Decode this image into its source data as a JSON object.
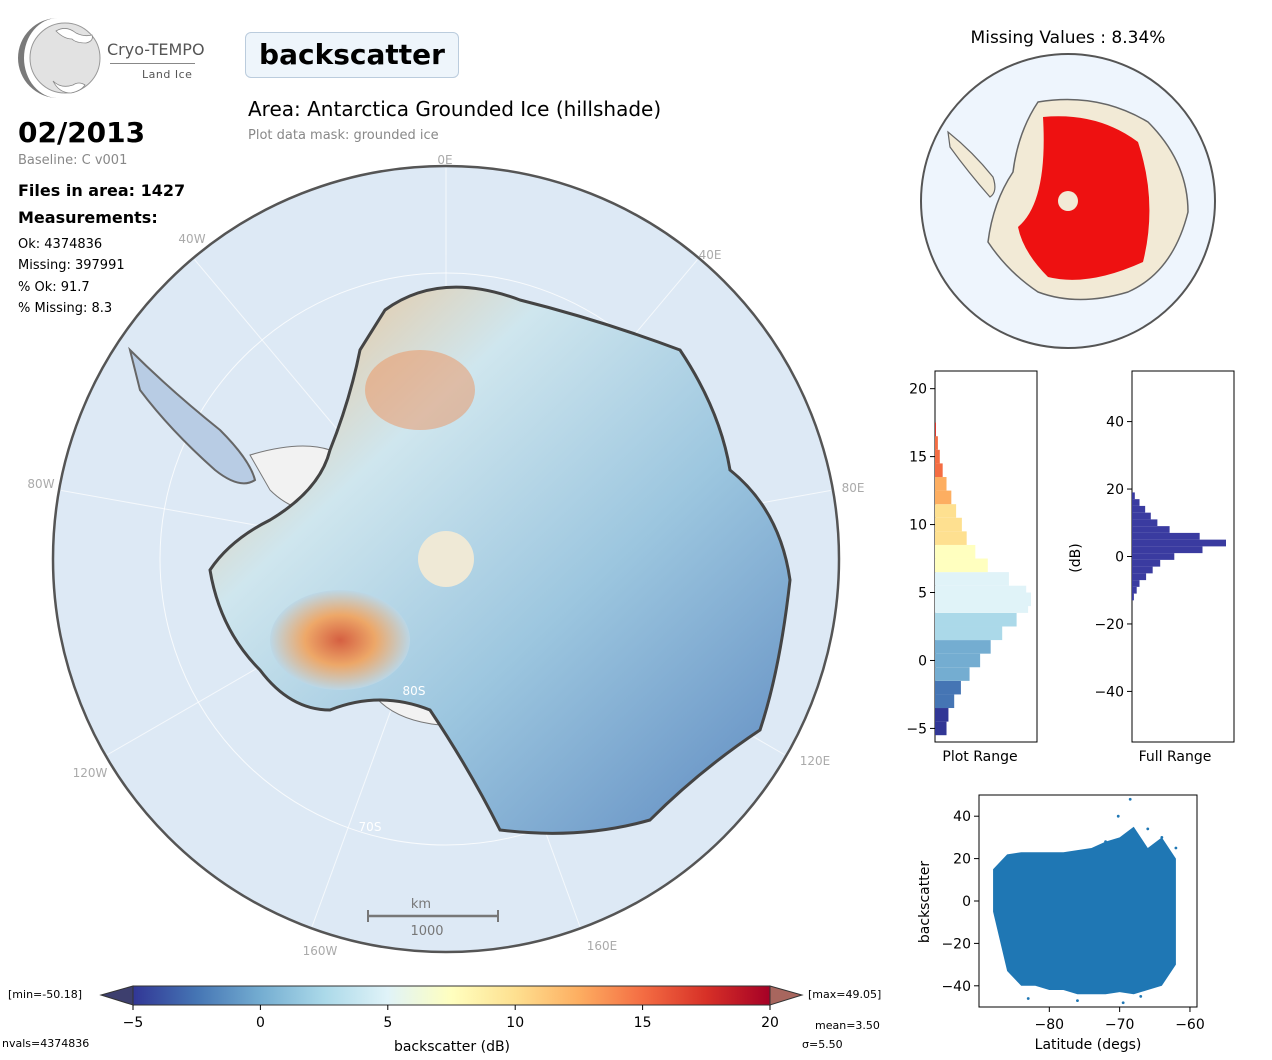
{
  "logo": {
    "main": "Cryo-TEMPO",
    "sub": "Land Ice"
  },
  "parameter": "backscatter",
  "area_title": "Area: Antarctica Grounded Ice (hillshade)",
  "mask_label": "Plot data mask: grounded ice",
  "date": "02/2013",
  "baseline": "Baseline: C v001",
  "files_in_area": "Files in area: 1427",
  "measurements_heading": "Measurements:",
  "stats": {
    "ok": "Ok: 4374836",
    "missing": "Missing: 397991",
    "pct_ok": "% Ok: 91.7",
    "pct_missing": "% Missing: 8.3"
  },
  "missing_title": "Missing Values : 8.34%",
  "map": {
    "lon_labels": [
      "0E",
      "40E",
      "80E",
      "120E",
      "160E",
      "160W",
      "120W",
      "80W",
      "40W"
    ],
    "lat_labels": [
      "80S",
      "70S"
    ],
    "scale_bar": {
      "unit": "km",
      "length": "1000"
    }
  },
  "colorbar": {
    "label": "backscatter (dB)",
    "ticks": [
      "−5",
      "0",
      "5",
      "10",
      "15",
      "20"
    ],
    "range": [
      -5,
      20
    ],
    "min_label": "[min=-50.18]",
    "max_label": "[max=49.05]",
    "colors": [
      "#313695",
      "#4575b4",
      "#74add1",
      "#abd9e9",
      "#e0f3f8",
      "#ffffbf",
      "#fee090",
      "#fdae61",
      "#f46d43",
      "#d73027",
      "#a50026"
    ]
  },
  "summary": {
    "nvals": "nvals=4374836",
    "mean": "mean=3.50",
    "sigma": "σ=5.50"
  },
  "chart_data": [
    {
      "type": "bar",
      "orientation": "horizontal",
      "xlabel": "Plot Range",
      "ylabel": "",
      "ylim": [
        -6,
        21.3
      ],
      "yticks": [
        -5,
        0,
        5,
        10,
        15,
        20
      ],
      "bin_centers": [
        -5,
        -4,
        -3,
        -2,
        -1,
        0,
        1,
        2,
        3,
        4,
        4.5,
        5,
        6,
        7,
        8,
        9,
        10,
        11,
        12,
        13,
        14,
        15,
        16,
        17
      ],
      "relative_counts": [
        0.12,
        0.14,
        0.2,
        0.27,
        0.36,
        0.47,
        0.58,
        0.7,
        0.85,
        0.97,
        1.0,
        0.95,
        0.77,
        0.55,
        0.42,
        0.33,
        0.28,
        0.22,
        0.17,
        0.12,
        0.08,
        0.05,
        0.03,
        0.01
      ]
    },
    {
      "type": "bar",
      "orientation": "horizontal",
      "xlabel": "Full Range",
      "ylabel": "(dB)",
      "ylim": [
        -55,
        55
      ],
      "yticks": [
        -40,
        -20,
        0,
        20,
        40
      ],
      "bin_centers": [
        -12,
        -10,
        -8,
        -6,
        -4,
        -2,
        0,
        2,
        4,
        6,
        8,
        10,
        12,
        14,
        16,
        18
      ],
      "relative_counts": [
        0.02,
        0.05,
        0.08,
        0.15,
        0.22,
        0.3,
        0.45,
        0.75,
        1.0,
        0.72,
        0.4,
        0.27,
        0.2,
        0.14,
        0.08,
        0.03
      ],
      "color": "#3a3ba0"
    },
    {
      "type": "scatter",
      "xlabel": "Latitude (degs)",
      "ylabel": "backscatter",
      "xlim": [
        -90,
        -59
      ],
      "ylim": [
        -50,
        50
      ],
      "xticks": [
        -80,
        -70,
        -60
      ],
      "yticks": [
        -40,
        -20,
        0,
        20,
        40
      ],
      "color": "#1f77b4",
      "lower_envelope": {
        "lat": [
          -88,
          -86,
          -84,
          -82,
          -80,
          -78,
          -76,
          -74,
          -72,
          -70,
          -68,
          -66,
          -64,
          -62
        ],
        "value": [
          -5,
          -33,
          -40,
          -40,
          -42,
          -42,
          -44,
          -44,
          -44,
          -43,
          -44,
          -42,
          -40,
          -30
        ]
      },
      "upper_envelope": {
        "lat": [
          -88,
          -86,
          -84,
          -82,
          -80,
          -78,
          -76,
          -74,
          -72,
          -70,
          -68,
          -66,
          -64,
          -62
        ],
        "value": [
          15,
          22,
          23,
          23,
          23,
          23,
          24,
          25,
          28,
          30,
          35,
          25,
          30,
          20
        ]
      },
      "outliers": [
        [
          -68.5,
          48
        ],
        [
          -70.2,
          40
        ],
        [
          -66,
          34
        ],
        [
          -62,
          25
        ],
        [
          -64,
          30
        ],
        [
          -72,
          28
        ],
        [
          -67,
          -45
        ],
        [
          -69.5,
          -48
        ],
        [
          -76,
          -47
        ],
        [
          -83,
          -46
        ]
      ]
    }
  ]
}
